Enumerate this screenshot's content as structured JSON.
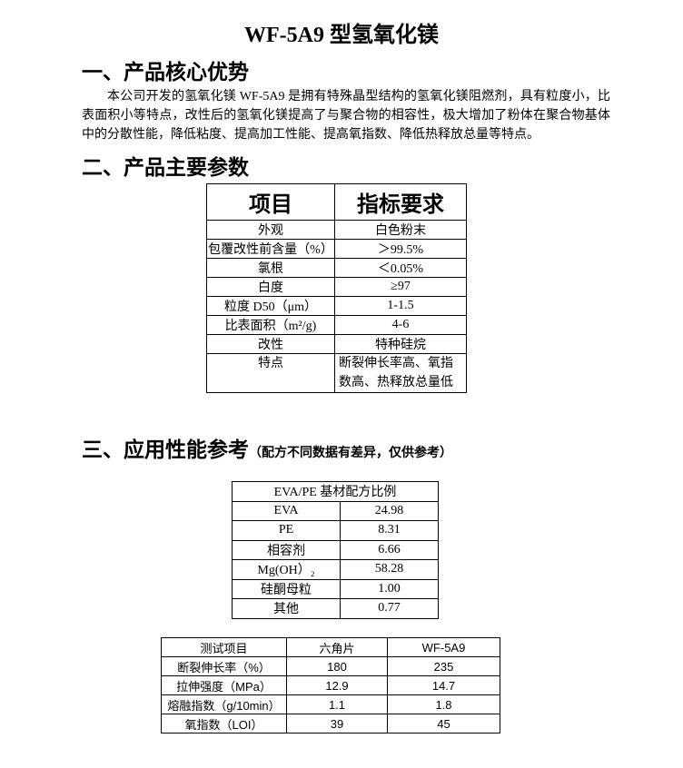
{
  "title": "WF-5A9 型氢氧化镁",
  "section1": {
    "heading": "一、产品核心优势",
    "paragraph": "本公司开发的氢氧化镁 WF-5A9 是拥有特殊晶型结构的氢氧化镁阻燃剂，具有粒度小，比表面积小等特点，改性后的氢氧化镁提高了与聚合物的相容性，极大增加了粉体在聚合物基体中的分散性能，降低粘度、提高加工性能、提高氧指数、降低热释放总量等特点。"
  },
  "section2": {
    "heading": "二、产品主要参数",
    "headers": [
      "项目",
      "指标要求"
    ],
    "rows": [
      [
        "外观",
        "白色粉末"
      ],
      [
        "包覆改性前含量（%）",
        "＞99.5%"
      ],
      [
        "氯根",
        "＜0.05%"
      ],
      [
        "白度",
        "≥97"
      ],
      [
        "粒度 D50（μm）",
        "1-1.5"
      ],
      [
        "比表面积（m²/g)",
        "4-6"
      ],
      [
        "改性",
        "特种硅烷"
      ],
      [
        "特点",
        "断裂伸长率高、氧指数高、热释放总量低"
      ]
    ]
  },
  "section3": {
    "heading": "三、应用性能参考",
    "note": "（配方不同数据有差异，仅供参考）",
    "formula": {
      "caption": "EVA/PE 基材配方比例",
      "rows": [
        [
          "EVA",
          "24.98"
        ],
        [
          "PE",
          "8.31"
        ],
        [
          "相容剂",
          "6.66"
        ],
        [
          "Mg(OH）₂",
          "58.28"
        ],
        [
          "硅酮母粒",
          "1.00"
        ],
        [
          "其他",
          "0.77"
        ]
      ]
    },
    "tests": {
      "headers": [
        "测试项目",
        "六角片",
        "WF-5A9"
      ],
      "rows": [
        [
          "断裂伸长率（%）",
          "180",
          "235"
        ],
        [
          "拉伸强度（MPa）",
          "12.9",
          "14.7"
        ],
        [
          "熔融指数（g/10min）",
          "1.1",
          "1.8"
        ],
        [
          "氧指数（LOI）",
          "39",
          "45"
        ]
      ]
    }
  }
}
